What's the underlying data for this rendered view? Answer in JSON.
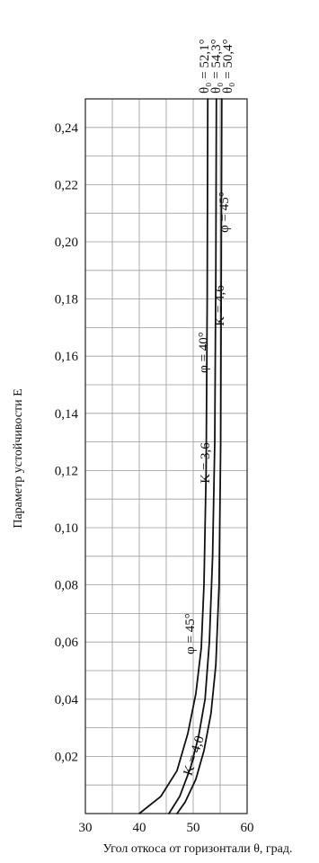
{
  "chart_data": {
    "type": "line",
    "title": "",
    "xlabel": "Угол откоса от горизонтали θ, град.",
    "ylabel": "Параметр устойчивости E",
    "xlim": [
      30,
      60
    ],
    "ylim": [
      0,
      0.25
    ],
    "x_ticks": [
      "30",
      "40",
      "50",
      "60"
    ],
    "y_ticks": [
      "0,02",
      "0,04",
      "0,06",
      "0,08",
      "0,10",
      "0,12",
      "0,14",
      "0,16",
      "0,18",
      "0,20",
      "0,22",
      "0,24"
    ],
    "grid": true,
    "series": [
      {
        "name": "K = 3,6",
        "points": [
          [
            40,
            0
          ],
          [
            44,
            0.006
          ],
          [
            47,
            0.015
          ],
          [
            49,
            0.028
          ],
          [
            50.5,
            0.042
          ],
          [
            51.5,
            0.058
          ],
          [
            52,
            0.08
          ],
          [
            52.4,
            0.12
          ],
          [
            52.6,
            0.18
          ],
          [
            52.7,
            0.25
          ]
        ]
      },
      {
        "name": "K = 4,6",
        "points": [
          [
            45.5,
            0
          ],
          [
            47.5,
            0.006
          ],
          [
            49.5,
            0.016
          ],
          [
            51,
            0.027
          ],
          [
            52.2,
            0.04
          ],
          [
            53,
            0.06
          ],
          [
            53.6,
            0.09
          ],
          [
            54,
            0.13
          ],
          [
            54.2,
            0.19
          ],
          [
            54.3,
            0.25
          ]
        ]
      },
      {
        "name": "K = 4,0",
        "points": [
          [
            47,
            0
          ],
          [
            48.5,
            0.004
          ],
          [
            50.5,
            0.012
          ],
          [
            52,
            0.022
          ],
          [
            53.3,
            0.035
          ],
          [
            54.2,
            0.052
          ],
          [
            54.8,
            0.08
          ],
          [
            55.1,
            0.13
          ],
          [
            55.2,
            0.19
          ],
          [
            55.3,
            0.25
          ]
        ]
      }
    ],
    "annotations": [
      {
        "text": "θ₀ = 52,1°"
      },
      {
        "text": "θ₀ = 54,3°"
      },
      {
        "text": "θ₀ = 50,4°"
      },
      {
        "text": "φ = 45°"
      },
      {
        "text": "K = 4,6"
      },
      {
        "text": "φ = 40°"
      },
      {
        "text": "K = 3,6"
      },
      {
        "text": "φ = 45°"
      },
      {
        "text": "K = 4,0"
      }
    ]
  }
}
